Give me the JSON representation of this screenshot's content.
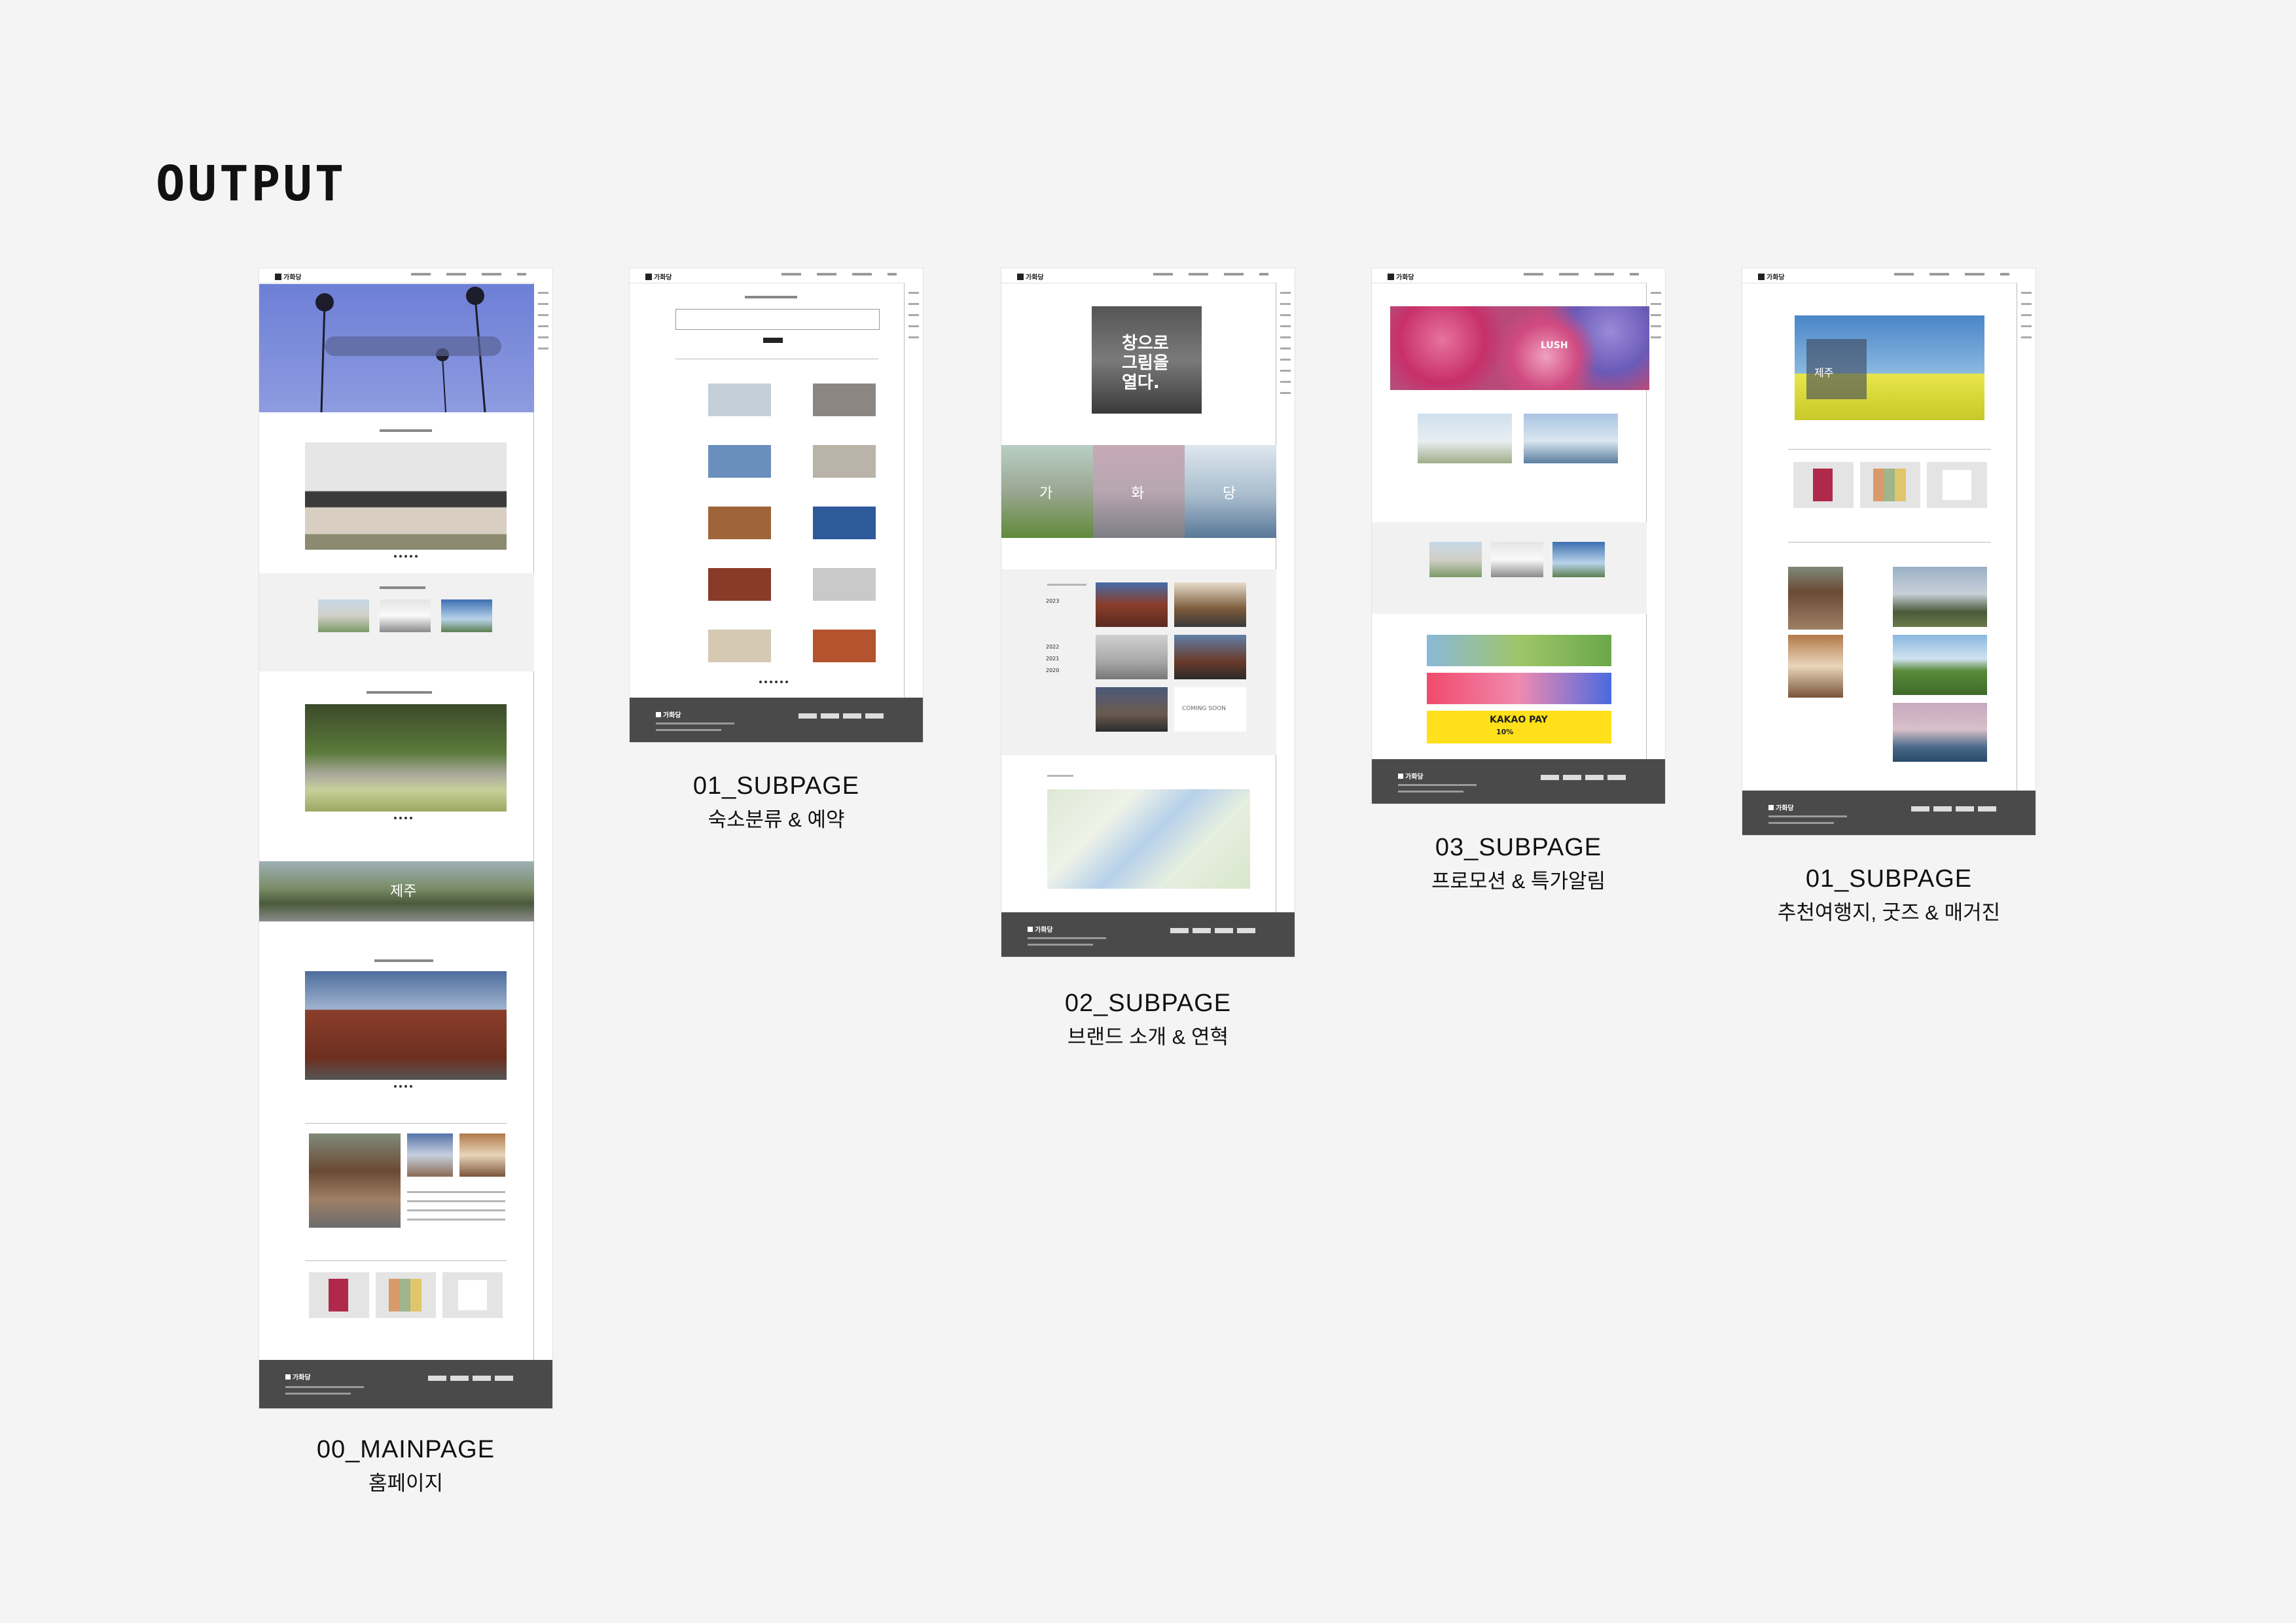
{
  "heading": "OUTPUT",
  "mockups": [
    {
      "code": "00_MAINPAGE",
      "subtitle": "홈페이지"
    },
    {
      "code": "01_SUBPAGE",
      "subtitle": "숙소분류 & 예약"
    },
    {
      "code": "02_SUBPAGE",
      "subtitle": "브랜드 소개 & 연혁"
    },
    {
      "code": "03_SUBPAGE",
      "subtitle": "프로모션 & 특가알림"
    },
    {
      "code": "01_SUBPAGE",
      "subtitle": "추천여행지, 굿즈 & 매거진"
    }
  ],
  "brand": "가화당",
  "overlay": {
    "window_line1": "창으로",
    "window_line2": "그림을",
    "window_line3": "열다.",
    "jeju": "제주",
    "char1": "가",
    "char2": "화",
    "char3": "당",
    "kakao": "KAKAO PAY",
    "kakao_discount": "10%",
    "lush": "LUSH",
    "coming_soon": "COMING SOON",
    "years": [
      "2023",
      "2022",
      "2021",
      "2020"
    ]
  },
  "colors": {
    "footer": "#4a4a4a",
    "background": "#f4f4f4",
    "sky": "#6d7fd6"
  }
}
